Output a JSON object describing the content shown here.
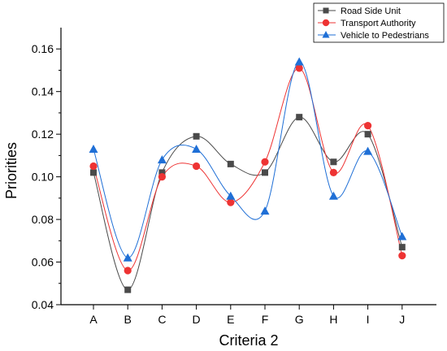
{
  "chart_data": {
    "type": "line",
    "title": "",
    "xlabel": "Criteria 2",
    "ylabel": "Priorities",
    "categories": [
      "A",
      "B",
      "C",
      "D",
      "E",
      "F",
      "G",
      "H",
      "I",
      "J"
    ],
    "ylim": [
      0.04,
      0.17
    ],
    "yticks": [
      0.04,
      0.06,
      0.08,
      0.1,
      0.12,
      0.14,
      0.16
    ],
    "ytick_labels": [
      "0.04",
      "0.06",
      "0.08",
      "0.10",
      "0.12",
      "0.14",
      "0.16"
    ],
    "legend_position": "top-right",
    "grid": false,
    "series": [
      {
        "name": "Road Side Unit",
        "marker": "square",
        "color": "#4a4a4a",
        "values": [
          0.102,
          0.047,
          0.102,
          0.119,
          0.106,
          0.102,
          0.128,
          0.107,
          0.12,
          0.067
        ]
      },
      {
        "name": "Transport Authority",
        "marker": "circle",
        "color": "#ee3333",
        "values": [
          0.105,
          0.056,
          0.1,
          0.105,
          0.088,
          0.107,
          0.151,
          0.102,
          0.124,
          0.063
        ]
      },
      {
        "name": "Vehicle to Pedestrians",
        "marker": "triangle",
        "color": "#1f6fd6",
        "values": [
          0.113,
          0.062,
          0.108,
          0.113,
          0.091,
          0.084,
          0.154,
          0.091,
          0.112,
          0.072
        ]
      }
    ]
  }
}
